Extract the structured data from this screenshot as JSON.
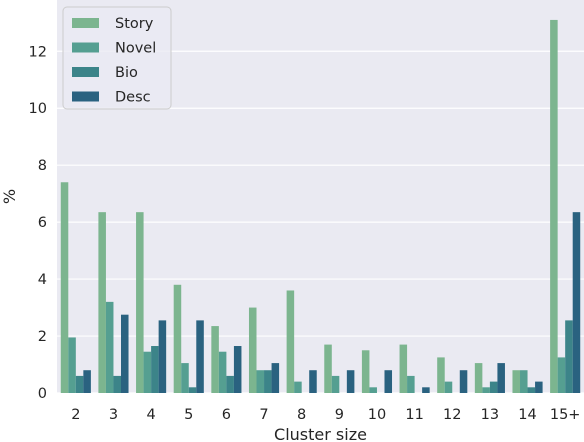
{
  "chart_data": {
    "type": "bar",
    "title": "",
    "xlabel": "Cluster size",
    "ylabel": "%",
    "categories": [
      "2",
      "3",
      "4",
      "5",
      "6",
      "7",
      "8",
      "9",
      "10",
      "11",
      "12",
      "13",
      "14",
      "15+"
    ],
    "series": [
      {
        "name": "Story",
        "color": "#7cb58f",
        "values": [
          7.4,
          6.35,
          6.35,
          3.8,
          2.35,
          3.0,
          3.6,
          1.7,
          1.5,
          1.7,
          1.25,
          1.05,
          0.8,
          13.1
        ]
      },
      {
        "name": "Novel",
        "color": "#559f91",
        "values": [
          1.95,
          3.2,
          1.45,
          1.05,
          1.45,
          0.8,
          0.4,
          0.6,
          0.2,
          0.6,
          0.4,
          0.2,
          0.8,
          1.25
        ]
      },
      {
        "name": "Bio",
        "color": "#3c8489",
        "values": [
          0.6,
          0.6,
          1.65,
          0.2,
          0.6,
          0.8,
          0.0,
          0.0,
          0.0,
          0.0,
          0.0,
          0.4,
          0.2,
          2.55
        ]
      },
      {
        "name": "Desc",
        "color": "#2a6280",
        "values": [
          0.8,
          2.75,
          2.55,
          2.55,
          1.65,
          1.05,
          0.8,
          0.8,
          0.8,
          0.2,
          0.8,
          1.05,
          0.4,
          6.35
        ]
      }
    ],
    "ylim": [
      0,
      13.8
    ],
    "yticks": [
      0,
      2,
      4,
      6,
      8,
      10,
      12
    ],
    "grid": true,
    "legend_position": "top-left",
    "plot_background": "#eaeaf2",
    "grid_color": "#ffffff"
  }
}
